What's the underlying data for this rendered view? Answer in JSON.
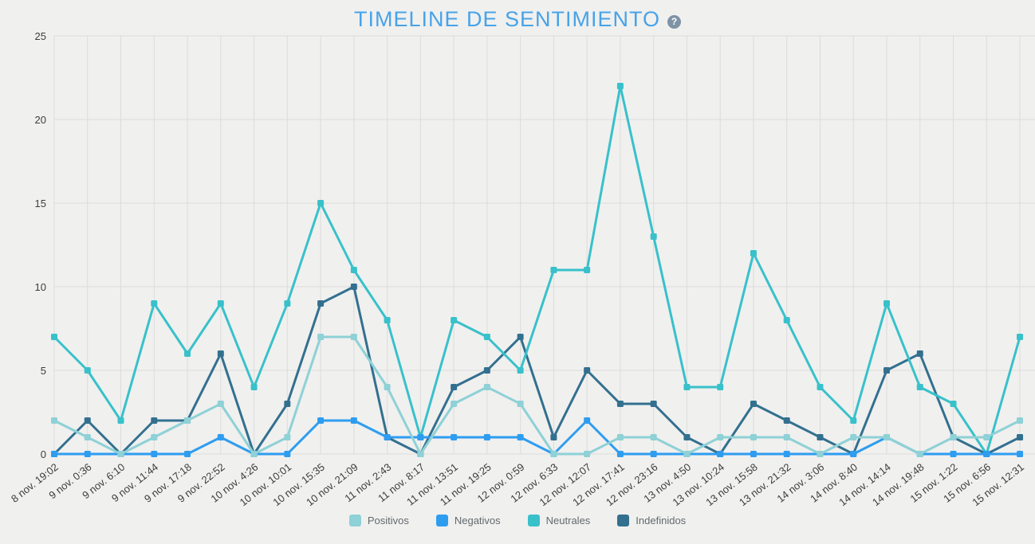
{
  "title": "TIMELINE DE SENTIMIENTO",
  "help_icon_glyph": "?",
  "colors": {
    "background": "#f0f0ef",
    "grid": "#dcdcdc",
    "title": "#47a3e8",
    "axis_text": "#3c3c3c",
    "legend_text": "#63696d",
    "help_icon_bg": "#7e93a5"
  },
  "chart_data": {
    "type": "line",
    "title": "TIMELINE DE SENTIMIENTO",
    "xlabel": "",
    "ylabel": "",
    "ylim": [
      0,
      25
    ],
    "y_ticks": [
      0,
      5,
      10,
      15,
      20,
      25
    ],
    "grid": true,
    "legend_position": "bottom",
    "marker": "square",
    "x_labels": [
      "8 nov. 19:02",
      "9 nov. 0:36",
      "9 nov. 6:10",
      "9 nov. 11:44",
      "9 nov. 17:18",
      "9 nov. 22:52",
      "10 nov. 4:26",
      "10 nov. 10:01",
      "10 nov. 15:35",
      "10 nov. 21:09",
      "11 nov. 2:43",
      "11 nov. 8:17",
      "11 nov. 13:51",
      "11 nov. 19:25",
      "12 nov. 0:59",
      "12 nov. 6:33",
      "12 nov. 12:07",
      "12 nov. 17:41",
      "12 nov. 23:16",
      "13 nov. 4:50",
      "13 nov. 10:24",
      "13 nov. 15:58",
      "13 nov. 21:32",
      "14 nov. 3:06",
      "14 nov. 8:40",
      "14 nov. 14:14",
      "14 nov. 19:48",
      "15 nov. 1:22",
      "15 nov. 6:56",
      "15 nov. 12:31"
    ],
    "series": [
      {
        "name": "Positivos",
        "color": "#8ed1d6",
        "values": [
          2,
          1,
          0,
          1,
          2,
          3,
          0,
          1,
          7,
          7,
          4,
          0,
          3,
          4,
          3,
          0,
          0,
          1,
          1,
          0,
          1,
          1,
          1,
          0,
          1,
          1,
          0,
          1,
          1,
          2
        ]
      },
      {
        "name": "Negativos",
        "color": "#2e9df0",
        "values": [
          0,
          0,
          0,
          0,
          0,
          1,
          0,
          0,
          2,
          2,
          1,
          1,
          1,
          1,
          1,
          0,
          2,
          0,
          0,
          0,
          0,
          0,
          0,
          0,
          0,
          1,
          0,
          0,
          0,
          0
        ]
      },
      {
        "name": "Neutrales",
        "color": "#38c1ca",
        "values": [
          7,
          5,
          2,
          9,
          6,
          9,
          4,
          9,
          15,
          11,
          8,
          1,
          8,
          7,
          5,
          11,
          11,
          22,
          13,
          4,
          4,
          12,
          8,
          4,
          2,
          9,
          4,
          3,
          0,
          7
        ]
      },
      {
        "name": "Indefinidos",
        "color": "#33708f",
        "values": [
          0,
          2,
          0,
          2,
          2,
          6,
          0,
          3,
          9,
          10,
          1,
          0,
          4,
          5,
          7,
          1,
          5,
          3,
          3,
          1,
          0,
          3,
          2,
          1,
          0,
          5,
          6,
          1,
          0,
          1
        ]
      }
    ]
  }
}
